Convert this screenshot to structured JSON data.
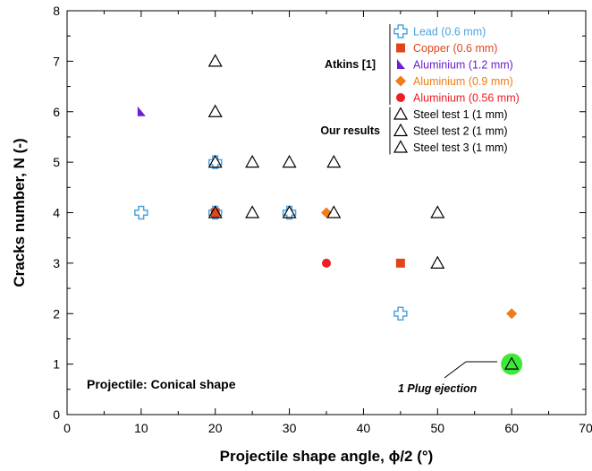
{
  "chart_data": {
    "type": "scatter",
    "xlabel": "Projectile shape angle, ϕ/2 (°)",
    "ylabel": "Cracks number, N (-)",
    "xlim": [
      0,
      70
    ],
    "ylim": [
      0,
      8
    ],
    "xticks": [
      0,
      10,
      20,
      30,
      40,
      50,
      60,
      70
    ],
    "yticks": [
      0,
      1,
      2,
      3,
      4,
      5,
      6,
      7,
      8
    ],
    "grid": false,
    "legend_position": "top-right",
    "legend_groups": [
      {
        "label": "Atkins [1]",
        "series": [
          0,
          1,
          2,
          3,
          4
        ]
      },
      {
        "label": "Our results",
        "series": [
          5,
          6,
          7
        ]
      }
    ],
    "series": [
      {
        "name": "Lead (0.6 mm)",
        "marker": "cross-open",
        "color": "#4fa3e0",
        "points": [
          [
            10,
            4
          ],
          [
            20,
            4
          ],
          [
            20,
            5
          ],
          [
            30,
            4
          ],
          [
            45,
            2
          ]
        ]
      },
      {
        "name": "Copper (0.6 mm)",
        "marker": "square",
        "color": "#e0461c",
        "points": [
          [
            20,
            4
          ],
          [
            45,
            3
          ]
        ]
      },
      {
        "name": "Aluminium (1.2 mm)",
        "marker": "half-triangle",
        "color": "#6a1fd0",
        "points": [
          [
            10,
            6
          ]
        ]
      },
      {
        "name": "Aluminium (0.9 mm)",
        "marker": "diamond",
        "color": "#f07c18",
        "points": [
          [
            35,
            4
          ],
          [
            60,
            2
          ]
        ]
      },
      {
        "name": "Aluminium (0.56 mm)",
        "marker": "circle",
        "color": "#ee1c24",
        "points": [
          [
            35,
            3
          ]
        ]
      },
      {
        "name": "Steel test 1 (1 mm)",
        "marker": "triangle-open",
        "color": "#000000",
        "points": [
          [
            20,
            7
          ],
          [
            20,
            6
          ],
          [
            20,
            5
          ],
          [
            25,
            5
          ],
          [
            30,
            5
          ],
          [
            36,
            5
          ],
          [
            20,
            4
          ],
          [
            25,
            4
          ],
          [
            30,
            4
          ],
          [
            36,
            4
          ],
          [
            50,
            4
          ],
          [
            50,
            3
          ],
          [
            60,
            1
          ]
        ]
      },
      {
        "name": "Steel test 2 (1 mm)",
        "marker": "triangle-open",
        "color": "#000000",
        "points": []
      },
      {
        "name": "Steel test 3 (1 mm)",
        "marker": "triangle-open",
        "color": "#000000",
        "points": []
      }
    ],
    "highlight": {
      "x": 60,
      "y": 1,
      "color": "#3ee83a"
    },
    "annotations": [
      {
        "text": "Projectile: Conical shape"
      },
      {
        "text": "1 Plug ejection",
        "x": 60,
        "y": 1
      }
    ]
  }
}
